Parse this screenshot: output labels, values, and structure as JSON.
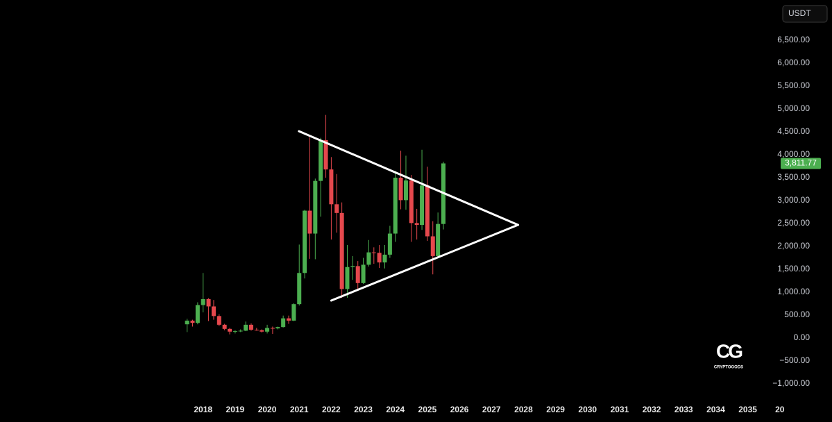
{
  "chart_data": {
    "type": "candlestick",
    "currency": "USDT",
    "up_color": "#4caf50",
    "down_color": "#e5484d",
    "x": [
      2017.5,
      2017.67,
      2017.83,
      2018.0,
      2018.17,
      2018.33,
      2018.5,
      2018.67,
      2018.83,
      2019.0,
      2019.17,
      2019.33,
      2019.5,
      2019.67,
      2019.83,
      2020.0,
      2020.17,
      2020.33,
      2020.5,
      2020.67,
      2020.83,
      2021.0,
      2021.17,
      2021.33,
      2021.5,
      2021.67,
      2021.83,
      2022.0,
      2022.17,
      2022.33,
      2022.5,
      2022.67,
      2022.83,
      2023.0,
      2023.17,
      2023.33,
      2023.5,
      2023.67,
      2023.83,
      2024.0,
      2024.17,
      2024.33,
      2024.5,
      2024.67,
      2024.83,
      2025.0,
      2025.17,
      2025.33,
      2025.5
    ],
    "open": [
      300,
      380,
      330,
      720,
      850,
      690,
      480,
      290,
      200,
      140,
      150,
      160,
      290,
      180,
      170,
      140,
      220,
      210,
      240,
      430,
      380,
      740,
      1420,
      2780,
      2280,
      3430,
      4320,
      3680,
      2920,
      2730,
      1070,
      1550,
      1570,
      1200,
      1600,
      1870,
      1860,
      1650,
      1820,
      2280,
      3500,
      3010,
      3440,
      2510,
      2470,
      3330,
      2220,
      1790,
      2490
    ],
    "high": [
      420,
      400,
      780,
      1420,
      870,
      830,
      520,
      310,
      220,
      170,
      190,
      360,
      320,
      220,
      190,
      290,
      250,
      250,
      490,
      490,
      760,
      2040,
      2800,
      4380,
      3480,
      4370,
      4870,
      3950,
      3580,
      2960,
      2030,
      1790,
      1680,
      1750,
      2140,
      1980,
      2030,
      2030,
      2450,
      3650,
      4090,
      3980,
      3560,
      2820,
      4110,
      3740,
      2550,
      2740,
      3850
    ],
    "low": [
      130,
      250,
      300,
      560,
      370,
      400,
      260,
      170,
      80,
      100,
      130,
      150,
      160,
      160,
      120,
      100,
      90,
      190,
      230,
      310,
      370,
      710,
      1300,
      1730,
      1720,
      2650,
      3500,
      2150,
      2300,
      880,
      880,
      1270,
      1070,
      1180,
      1560,
      1620,
      1530,
      1520,
      1750,
      2100,
      2810,
      2800,
      2100,
      2150,
      2360,
      2120,
      1390,
      1750,
      2370
    ],
    "close": [
      380,
      330,
      720,
      850,
      690,
      480,
      290,
      200,
      140,
      150,
      160,
      290,
      180,
      170,
      140,
      220,
      210,
      240,
      430,
      380,
      740,
      1420,
      2780,
      2280,
      3430,
      4320,
      3680,
      2920,
      2730,
      1070,
      1550,
      1570,
      1200,
      1600,
      1870,
      1860,
      1650,
      1820,
      2280,
      3500,
      3010,
      3440,
      2510,
      2470,
      3330,
      2220,
      1790,
      2490,
      3811.77
    ],
    "last_price": {
      "value": 3811.77,
      "label": "3,811.77"
    },
    "trendlines": [
      {
        "x": [
          2020.99,
          2027.83
        ],
        "y": [
          4515,
          2470
        ]
      },
      {
        "x": [
          2022.0,
          2027.83
        ],
        "y": [
          818,
          2470
        ]
      }
    ],
    "xlim": [
      2011.66,
      2035.68
    ],
    "xticks": [
      2018,
      2019,
      2020,
      2021,
      2022,
      2023,
      2024,
      2025,
      2026,
      2027,
      2028,
      2029,
      2030,
      2031,
      2032,
      2033,
      2034,
      2035,
      {
        "value": 2036,
        "label": "20"
      }
    ],
    "ylim": [
      -1833,
      7379
    ],
    "yticks": [
      {
        "value": -1000,
        "label": "−1,000.00"
      },
      {
        "value": -500,
        "label": "−500.00"
      },
      {
        "value": 0,
        "label": "0.00"
      },
      {
        "value": 500,
        "label": "500.00"
      },
      {
        "value": 1000,
        "label": "1,000.00"
      },
      {
        "value": 1500,
        "label": "1,500.00"
      },
      {
        "value": 2000,
        "label": "2,000.00"
      },
      {
        "value": 2500,
        "label": "2,500.00"
      },
      {
        "value": 3000,
        "label": "3,000.00"
      },
      {
        "value": 3500,
        "label": "3,500.00"
      },
      {
        "value": 4000,
        "label": "4,000.00"
      },
      {
        "value": 4500,
        "label": "4,500.00"
      },
      {
        "value": 5000,
        "label": "5,000.00"
      },
      {
        "value": 5500,
        "label": "5,500.00"
      },
      {
        "value": 6000,
        "label": "6,000.00"
      },
      {
        "value": 6500,
        "label": "6,500.00"
      }
    ],
    "watermark": {
      "logo": "CG",
      "name": "CRYPTOGODS"
    }
  }
}
